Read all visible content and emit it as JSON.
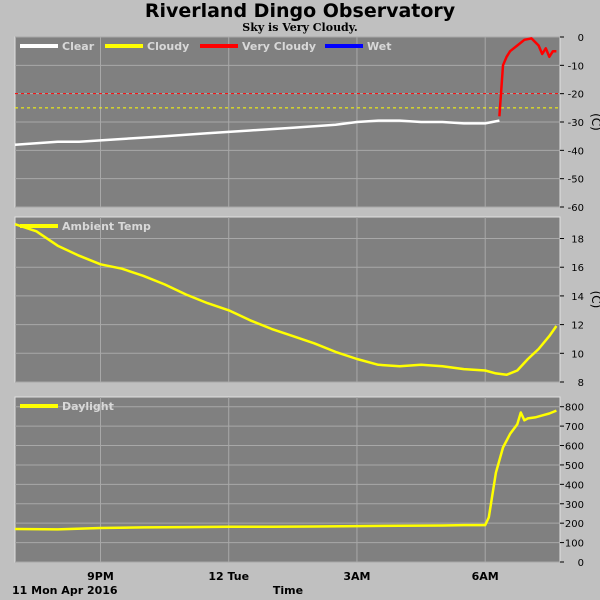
{
  "title": "Riverland Dingo Observatory",
  "subtitle": "Sky is Very Cloudy.",
  "x_axis": {
    "label": "Time",
    "date_label": "11 Mon Apr 2016",
    "tick_labels": [
      "9PM",
      "12 Tue",
      "3AM",
      "6AM"
    ]
  },
  "colors": {
    "background": "#c0c0c0",
    "plot_bg": "#808080",
    "grid": "#a8a8a8",
    "clear": "#ffffff",
    "cloudy": "#ffff00",
    "very_cloudy": "#ff0000",
    "wet": "#0000ff"
  },
  "chart_data": [
    {
      "type": "line",
      "ylabel": "(C)",
      "ylim": [
        -60,
        0
      ],
      "yticks": [
        0,
        -10,
        -20,
        -30,
        -40,
        -50,
        -60
      ],
      "grid": true,
      "legend": [
        "Clear",
        "Cloudy",
        "Very Cloudy",
        "Wet"
      ],
      "thresholds": [
        {
          "value": -20,
          "color": "#ff0000"
        },
        {
          "value": -25,
          "color": "#ffff00"
        }
      ],
      "series": [
        {
          "color": "#ffffff",
          "x": [
            "19:00",
            "19:30",
            "20:00",
            "20:30",
            "21:00",
            "21:30",
            "22:00",
            "22:30",
            "23:00",
            "23:30",
            "00:00",
            "00:30",
            "01:00",
            "01:30",
            "02:00",
            "02:30",
            "03:00",
            "03:30",
            "04:00",
            "04:30",
            "05:00",
            "05:30",
            "06:00",
            "06:20"
          ],
          "y": [
            -38,
            -37.5,
            -37,
            -37,
            -36.5,
            -36,
            -35.5,
            -35,
            -34.5,
            -34,
            -33.5,
            -33,
            -32.5,
            -32,
            -31.5,
            -31,
            -30,
            -29.5,
            -29.5,
            -30,
            -30,
            -30.5,
            -30.5,
            -29.5
          ]
        },
        {
          "color": "#ff0000",
          "x": [
            "06:20",
            "06:25",
            "06:30",
            "06:35",
            "06:45",
            "06:55",
            "07:05",
            "07:15",
            "07:20",
            "07:25",
            "07:30",
            "07:35",
            "07:40"
          ],
          "y": [
            -28,
            -10,
            -7,
            -5,
            -3,
            -1,
            -0.5,
            -3,
            -6,
            -4,
            -7,
            -5,
            -5
          ]
        }
      ]
    },
    {
      "type": "line",
      "ylabel": "(C)",
      "ylim": [
        8,
        19.5
      ],
      "yticks": [
        8,
        10,
        12,
        14,
        16,
        18
      ],
      "grid": true,
      "legend": [
        "Ambient Temp"
      ],
      "series": [
        {
          "name": "Ambient Temp",
          "color": "#ffff00",
          "x": [
            "19:00",
            "19:30",
            "20:00",
            "20:30",
            "21:00",
            "21:30",
            "22:00",
            "22:30",
            "23:00",
            "23:30",
            "00:00",
            "00:30",
            "01:00",
            "01:30",
            "02:00",
            "02:30",
            "03:00",
            "03:30",
            "04:00",
            "04:30",
            "05:00",
            "05:30",
            "06:00",
            "06:15",
            "06:30",
            "06:45",
            "07:00",
            "07:15",
            "07:30",
            "07:40"
          ],
          "y": [
            19,
            18.5,
            17.5,
            16.8,
            16.2,
            15.9,
            15.4,
            14.8,
            14.1,
            13.5,
            13.0,
            12.3,
            11.7,
            11.2,
            10.7,
            10.1,
            9.6,
            9.2,
            9.1,
            9.2,
            9.1,
            8.9,
            8.8,
            8.6,
            8.5,
            8.8,
            9.6,
            10.3,
            11.2,
            11.9
          ]
        }
      ]
    },
    {
      "type": "line",
      "ylim": [
        0,
        850
      ],
      "yticks": [
        0,
        100,
        200,
        300,
        400,
        500,
        600,
        700,
        800
      ],
      "grid": true,
      "legend": [
        "Daylight"
      ],
      "series": [
        {
          "name": "Daylight",
          "color": "#ffff00",
          "x": [
            "19:00",
            "20:00",
            "21:00",
            "22:00",
            "23:00",
            "00:00",
            "01:00",
            "02:00",
            "03:00",
            "04:00",
            "05:00",
            "05:30",
            "06:00",
            "06:05",
            "06:15",
            "06:25",
            "06:35",
            "06:45",
            "06:50",
            "06:55",
            "07:00",
            "07:10",
            "07:20",
            "07:30",
            "07:40"
          ],
          "y": [
            170,
            168,
            175,
            178,
            180,
            182,
            182,
            183,
            185,
            187,
            188,
            190,
            190,
            230,
            460,
            590,
            660,
            710,
            770,
            730,
            740,
            745,
            755,
            765,
            780
          ]
        }
      ]
    }
  ]
}
